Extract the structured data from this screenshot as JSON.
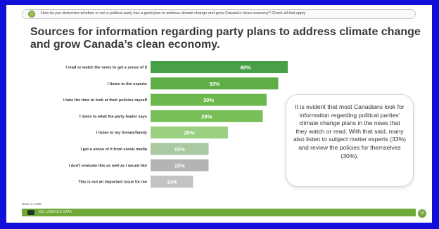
{
  "question": "How do you determine whether or not a political party has a good plan to address climate change and grow Canada's clean economy? Check all that apply",
  "title": "Sources for information regarding party plans to address climate change and grow Canada’s clean economy.",
  "callout": "It is evident that most Canadians look for information regarding political parties' climate change plans in the news that they watch or read. With that said, many also listen to subject matter experts (33%) and review the policies for themselves (30%).",
  "base_note": "Base n=1,000",
  "footer_text": "CEI | ABACUS DATA",
  "page_number": "10",
  "colors": {
    "frame": "#1010d8",
    "footer": "#70a83a",
    "bar_shades": [
      "#47a047",
      "#5fae45",
      "#6cb84c",
      "#79bf57",
      "#9ad07f",
      "#a9c9a2",
      "#b4b4b4",
      "#c3c3c3"
    ]
  },
  "chart_data": {
    "type": "bar",
    "orientation": "horizontal",
    "categories": [
      "I read or watch the news to get a sense of it",
      "I listen to the experts",
      "I take the time to look at their policies myself",
      "I listen to what the party leader says",
      "I listen to my friends/family",
      "I get a sense of it from social media",
      "I don't evaluate this as well as I would like",
      "This is not an important issue for me"
    ],
    "values": [
      49,
      33,
      30,
      29,
      20,
      15,
      15,
      11
    ],
    "value_labels": [
      "49%",
      "33%",
      "30%",
      "29%",
      "20%",
      "15%",
      "15%",
      "11%"
    ],
    "xlim": [
      0,
      100
    ],
    "grid": false,
    "legend": "none"
  }
}
